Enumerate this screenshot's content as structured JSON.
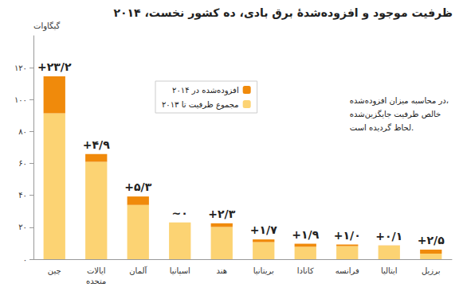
{
  "chart_data": {
    "type": "bar",
    "title": "ظرفیت موجود و افزوده‌شدهٔ برق بادی، ده کشور نخست، ۲۰۱۴",
    "y_label": "گیگاوات",
    "annotation": "در محاسبه میزان افزوده‌شده،\nخالص ظرفیت جایگزین‌شده\nلحاظ گردیده است.",
    "categories": [
      "چین",
      "ایالات\nمتحده",
      "آلمان",
      "اسپانیا",
      "هند",
      "بریتانیا",
      "کانادا",
      "فرانسه",
      "ایتالیا",
      "برزیل"
    ],
    "series": [
      {
        "name": "مجموع ظرفیت تا ۲۰۱۳",
        "color": "#fcd373",
        "values": [
          91.4,
          61.0,
          34.0,
          23.0,
          20.2,
          10.7,
          7.8,
          8.2,
          8.5,
          3.5
        ]
      },
      {
        "name": "افزوده‌شده در ۲۰۱۴",
        "color": "#f08a0b",
        "values": [
          23.2,
          4.9,
          5.3,
          0,
          2.3,
          1.7,
          1.9,
          1.0,
          0.1,
          2.5
        ],
        "value_labels": [
          "+۲۳/۲",
          "+۴/۹",
          "+۵/۳",
          "~۰",
          "+۲/۳",
          "+۱/۷",
          "+۱/۹",
          "+۱/۰",
          "+۰/۱",
          "+۲/۵"
        ]
      }
    ],
    "stacked": true,
    "data_labels": true,
    "legend": "top",
    "grid": false,
    "ylim": [
      0,
      140
    ],
    "yticks": [
      {
        "value": 0,
        "label": "۰"
      },
      {
        "value": 20,
        "label": "۲۰"
      },
      {
        "value": 40,
        "label": "۴۰"
      },
      {
        "value": 60,
        "label": "۶۰"
      },
      {
        "value": 80,
        "label": "۸۰"
      },
      {
        "value": 100,
        "label": "۱۰۰"
      },
      {
        "value": 120,
        "label": "۱۲۰"
      }
    ]
  }
}
